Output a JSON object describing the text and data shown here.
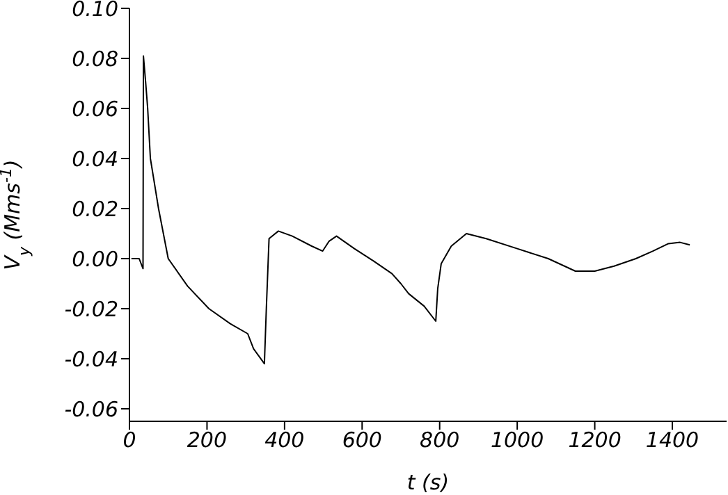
{
  "chart_data": {
    "type": "line",
    "xlabel": "t (s)",
    "ylabel": "V$_{y}$ (Mms$^{-1}$)",
    "x": [
      5,
      25,
      35,
      36,
      42,
      47,
      54,
      75,
      100,
      150,
      205,
      260,
      305,
      320,
      348,
      353,
      360,
      384,
      420,
      470,
      498,
      515,
      534,
      580,
      630,
      677,
      700,
      720,
      760,
      790,
      795,
      804,
      830,
      869,
      920,
      1000,
      1080,
      1150,
      1200,
      1250,
      1306,
      1350,
      1390,
      1420,
      1445
    ],
    "values": [
      0.0,
      0.0,
      -0.004,
      0.081,
      0.07,
      0.06,
      0.04,
      0.02,
      0.0,
      -0.011,
      -0.02,
      -0.026,
      -0.03,
      -0.036,
      -0.042,
      -0.02,
      0.008,
      0.011,
      0.009,
      0.005,
      0.003,
      0.007,
      0.009,
      0.004,
      -0.001,
      -0.006,
      -0.01,
      -0.014,
      -0.019,
      -0.025,
      -0.012,
      -0.002,
      0.005,
      0.01,
      0.008,
      0.004,
      0.0,
      -0.005,
      -0.005,
      -0.003,
      0.0,
      0.003,
      0.006,
      0.0065,
      0.0055
    ],
    "color": "#000000",
    "xlim": [
      0,
      1540
    ],
    "xticks": [
      0,
      200,
      400,
      600,
      800,
      1000,
      1200,
      1400
    ],
    "ylim": [
      -0.065,
      0.1
    ],
    "yticks": [
      {
        "value": -0.06,
        "label": "-0.06"
      },
      {
        "value": -0.04,
        "label": "-0.04"
      },
      {
        "value": -0.02,
        "label": "-0.02"
      },
      {
        "value": 0,
        "label": "0.00"
      },
      {
        "value": 0.02,
        "label": "0.02"
      },
      {
        "value": 0.04,
        "label": "0.04"
      },
      {
        "value": 0.06,
        "label": "0.06"
      },
      {
        "value": 0.08,
        "label": "0.08"
      },
      {
        "value": 0.1,
        "label": "0.10"
      }
    ],
    "grid": false,
    "legend": false,
    "marker": "none",
    "line_style": "solid"
  }
}
